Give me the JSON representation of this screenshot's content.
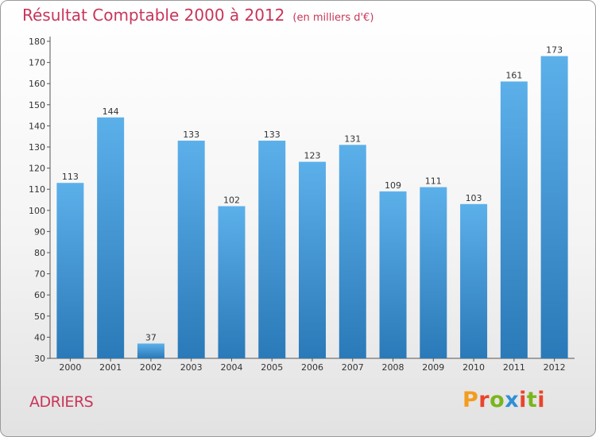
{
  "header": {
    "title": "Résultat Comptable 2000 à 2012",
    "subtitle": "(en milliers d'€)"
  },
  "footer": {
    "commune": "ADRIERS",
    "logo": {
      "text": "Proxiti"
    }
  },
  "colors": {
    "title": "#c8355a",
    "bar_top": "#5cb0ea",
    "bar_bottom": "#2a79b8",
    "logo_letters": [
      "#f39c1e",
      "#e8452c",
      "#7ab51d",
      "#2f8fd6",
      "#e8452c",
      "#7ab51d",
      "#e8452c"
    ]
  },
  "chart_data": {
    "type": "bar",
    "title": "Résultat Comptable 2000 à 2012",
    "subtitle": "(en milliers d'€)",
    "xlabel": "",
    "ylabel": "",
    "categories": [
      "2000",
      "2001",
      "2002",
      "2003",
      "2004",
      "2005",
      "2006",
      "2007",
      "2008",
      "2009",
      "2010",
      "2011",
      "2012"
    ],
    "values": [
      113,
      144,
      37,
      133,
      102,
      133,
      123,
      131,
      109,
      111,
      103,
      161,
      173
    ],
    "ylim": [
      30,
      180
    ],
    "yticks": [
      30,
      40,
      50,
      60,
      70,
      80,
      90,
      100,
      110,
      120,
      130,
      140,
      150,
      160,
      170,
      180
    ],
    "grid": false,
    "legend": "none"
  }
}
